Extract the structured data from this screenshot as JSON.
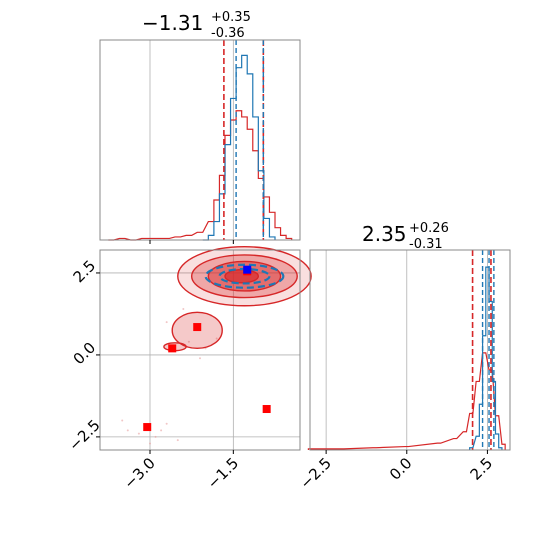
{
  "chart_data": {
    "type": "corner",
    "parameters": [
      {
        "title": {
          "value": "-1.31",
          "plus": "+0.35",
          "minus": "-0.36"
        },
        "display_value": "−1.31",
        "quantiles": {
          "lower": -1.67,
          "median": -1.31,
          "upper": -0.96
        },
        "xlim": [
          -3.9,
          -0.3
        ]
      },
      {
        "title": {
          "value": "2.35",
          "plus": "+0.26",
          "minus": "-0.31"
        },
        "display_value": "2.35",
        "quantiles": {
          "lower": 2.04,
          "median": 2.35,
          "upper": 2.61
        },
        "xlim": [
          -3.0,
          3.2
        ]
      }
    ],
    "series": [
      {
        "name": "",
        "color": "#d62728",
        "role": "red samples (broad)"
      },
      {
        "name": "",
        "color": "#1f77b4",
        "role": "blue samples (narrow)"
      }
    ],
    "marginal_1": {
      "red": {
        "x": [
          -3.7,
          -3.5,
          -3.3,
          -3.1,
          -2.9,
          -2.7,
          -2.5,
          -2.3,
          -2.1,
          -1.9,
          -1.8,
          -1.7,
          -1.6,
          -1.5,
          -1.4,
          -1.3,
          -1.2,
          -1.1,
          -1.0,
          -0.9,
          -0.8,
          -0.7,
          -0.6,
          -0.5
        ],
        "y": [
          0,
          1,
          0,
          1,
          1,
          1,
          2,
          3,
          5,
          12,
          26,
          42,
          68,
          78,
          84,
          80,
          72,
          58,
          40,
          28,
          18,
          8,
          3,
          1
        ]
      },
      "blue": {
        "x": [
          -2.0,
          -1.9,
          -1.8,
          -1.7,
          -1.6,
          -1.5,
          -1.4,
          -1.3,
          -1.2,
          -1.1,
          -1.0,
          -0.9,
          -0.8
        ],
        "y": [
          0,
          3,
          12,
          30,
          62,
          92,
          112,
          120,
          108,
          80,
          45,
          14,
          2
        ]
      },
      "blue_quantiles": [
        -1.45,
        -0.96
      ]
    },
    "marginal_2": {
      "red": {
        "x": [
          -3.0,
          -2.0,
          -1.0,
          0.0,
          1.0,
          1.5,
          1.8,
          2.0,
          2.2,
          2.4,
          2.6,
          2.8,
          3.0
        ],
        "y": [
          1,
          1,
          2,
          3,
          6,
          10,
          16,
          32,
          60,
          85,
          70,
          30,
          5
        ]
      },
      "blue": {
        "x": [
          2.0,
          2.2,
          2.3,
          2.4,
          2.5,
          2.6,
          2.7,
          2.8,
          2.9
        ],
        "y": [
          2,
          12,
          40,
          100,
          160,
          130,
          60,
          14,
          2
        ]
      },
      "blue_quantiles": [
        2.35,
        2.55,
        2.7
      ]
    },
    "joint": {
      "xlim": [
        -3.9,
        -0.3
      ],
      "ylim": [
        -2.9,
        3.2
      ],
      "red_contours": [
        {
          "cx": -1.3,
          "cy": 2.4,
          "rx": 1.2,
          "ry": 0.9
        },
        {
          "cx": -1.3,
          "cy": 2.4,
          "rx": 0.95,
          "ry": 0.65
        },
        {
          "cx": -1.3,
          "cy": 2.4,
          "rx": 0.65,
          "ry": 0.45
        },
        {
          "cx": -1.35,
          "cy": 2.4,
          "rx": 0.3,
          "ry": 0.2
        }
      ],
      "blue_contours": [
        {
          "cx": -1.3,
          "cy": 2.4,
          "rx": 0.7,
          "ry": 0.35
        },
        {
          "cx": -1.3,
          "cy": 2.4,
          "rx": 0.45,
          "ry": 0.22
        }
      ],
      "red_islands": [
        {
          "cx": -2.15,
          "cy": 0.75,
          "rx": 0.45,
          "ry": 0.55
        },
        {
          "cx": -2.55,
          "cy": 0.25,
          "rx": 0.2,
          "ry": 0.12
        }
      ],
      "red_points": [
        {
          "x": -3.05,
          "y": -2.2
        },
        {
          "x": -2.6,
          "y": 0.2
        },
        {
          "x": -2.15,
          "y": 0.85
        },
        {
          "x": -0.9,
          "y": -1.65
        },
        {
          "x": -1.25,
          "y": 2.55
        }
      ],
      "blue_points": [
        {
          "x": -1.25,
          "y": 2.6
        }
      ]
    }
  }
}
